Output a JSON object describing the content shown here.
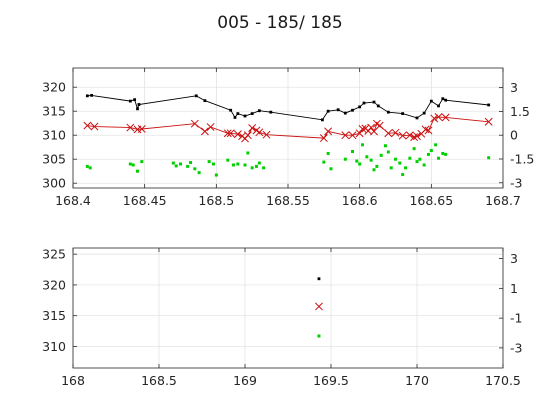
{
  "chart_data": {
    "title": "005 - 185/ 185",
    "panels": [
      {
        "type": "line",
        "xlim": [
          168.4,
          168.7
        ],
        "ylim": [
          299,
          324
        ],
        "y2lim": [
          -3.33,
          4.24
        ],
        "xticks": [
          168.4,
          168.45,
          168.5,
          168.55,
          168.6,
          168.65,
          168.7
        ],
        "xtick_labels": [
          "168.4",
          "168.45",
          "168.5",
          "168.55",
          "168.6",
          "168.65",
          "168.7"
        ],
        "yticks": [
          300,
          305,
          310,
          315,
          320
        ],
        "ytick_labels": [
          "300",
          "305",
          "310",
          "315",
          "320"
        ],
        "y2ticks": [
          -3,
          -1.5,
          0,
          1.5,
          3
        ],
        "y2tick_labels": [
          "-3",
          "-1.5",
          "0",
          "1.5",
          "3"
        ],
        "grid": true,
        "series": [
          {
            "style": "black-line-dots",
            "color": "#000000",
            "x": [
              168.41,
              168.413,
              168.44,
              168.443,
              168.445,
              168.446,
              168.486,
              168.492,
              168.51,
              168.513,
              168.515,
              168.52,
              168.525,
              168.53,
              168.538,
              168.574,
              168.578,
              168.585,
              168.59,
              168.595,
              168.6,
              168.603,
              168.61,
              168.613,
              168.62,
              168.63,
              168.64,
              168.645,
              168.65,
              168.655,
              168.658,
              168.66,
              168.69
            ],
            "y": [
              318.2,
              318.3,
              317.1,
              317.4,
              315.5,
              316.4,
              318.2,
              317.2,
              315.2,
              313.7,
              314.5,
              314.0,
              314.5,
              315.1,
              314.8,
              313.2,
              315.0,
              315.3,
              314.6,
              315.2,
              315.9,
              316.7,
              316.9,
              316.1,
              314.8,
              314.5,
              313.6,
              314.6,
              317.1,
              316.1,
              317.6,
              317.3,
              316.3
            ]
          },
          {
            "style": "red-line-x",
            "color": "#cc1010",
            "x": [
              168.41,
              168.415,
              168.44,
              168.445,
              168.448,
              168.485,
              168.492,
              168.496,
              168.508,
              168.51,
              168.515,
              168.518,
              168.52,
              168.522,
              168.525,
              168.528,
              168.53,
              168.535,
              168.575,
              168.578,
              168.59,
              168.595,
              168.6,
              168.602,
              168.604,
              168.606,
              168.608,
              168.61,
              168.612,
              168.614,
              168.62,
              168.625,
              168.63,
              168.635,
              168.638,
              168.64,
              168.643,
              168.646,
              168.648,
              168.652,
              168.655,
              168.66,
              168.69
            ],
            "y": [
              312.0,
              311.8,
              311.6,
              311.2,
              311.3,
              312.4,
              310.8,
              311.7,
              310.4,
              310.4,
              310.2,
              309.8,
              309.3,
              310.0,
              311.5,
              311.0,
              310.6,
              310.1,
              309.4,
              310.8,
              310.0,
              310.0,
              310.4,
              311.3,
              311.4,
              310.9,
              311.6,
              310.8,
              312.4,
              312.0,
              310.4,
              310.5,
              309.9,
              310.0,
              309.6,
              309.8,
              310.3,
              311.2,
              311.0,
              313.5,
              313.8,
              313.7,
              312.8
            ]
          },
          {
            "style": "green-dots",
            "color": "#00d000",
            "x": [
              168.41,
              168.412,
              168.44,
              168.442,
              168.445,
              168.448,
              168.47,
              168.472,
              168.475,
              168.48,
              168.482,
              168.485,
              168.488,
              168.495,
              168.498,
              168.5,
              168.508,
              168.512,
              168.515,
              168.52,
              168.522,
              168.525,
              168.528,
              168.53,
              168.533,
              168.575,
              168.578,
              168.58,
              168.59,
              168.595,
              168.598,
              168.6,
              168.602,
              168.605,
              168.608,
              168.61,
              168.612,
              168.615,
              168.618,
              168.62,
              168.622,
              168.625,
              168.628,
              168.63,
              168.632,
              168.635,
              168.638,
              168.64,
              168.642,
              168.645,
              168.648,
              168.65,
              168.653,
              168.655,
              168.658,
              168.66,
              168.69
            ],
            "y": [
              303.5,
              303.2,
              304.0,
              303.8,
              302.5,
              304.5,
              304.2,
              303.6,
              304.0,
              303.5,
              304.3,
              303.0,
              302.2,
              304.5,
              304.0,
              301.7,
              304.8,
              303.8,
              304.0,
              303.8,
              306.3,
              303.2,
              303.5,
              304.2,
              303.2,
              304.4,
              306.2,
              303.0,
              305.0,
              306.6,
              304.6,
              304.0,
              308.0,
              305.5,
              304.8,
              302.8,
              303.5,
              305.8,
              307.8,
              306.5,
              303.2,
              305.0,
              304.2,
              301.8,
              303.2,
              305.2,
              307.2,
              304.5,
              305.0,
              303.8,
              306.0,
              306.8,
              308.0,
              305.2,
              306.2,
              306.0,
              305.3
            ]
          }
        ]
      },
      {
        "type": "scatter",
        "xlim": [
          168,
          170.5
        ],
        "ylim": [
          306.5,
          326
        ],
        "y2lim": [
          -4.35,
          3.71
        ],
        "xticks": [
          168,
          168.5,
          169,
          169.5,
          170,
          170.5
        ],
        "xtick_labels": [
          "168",
          "168.5",
          "169",
          "169.5",
          "170",
          "170.5"
        ],
        "yticks": [
          310,
          315,
          320,
          325
        ],
        "ytick_labels": [
          "310",
          "315",
          "320",
          "325"
        ],
        "y2ticks": [
          -3,
          -1,
          1,
          3
        ],
        "y2tick_labels": [
          "-3",
          "-1",
          "1",
          "3"
        ],
        "grid": true,
        "series": [
          {
            "style": "black-line-dots",
            "color": "#000000",
            "x": [
              169.43
            ],
            "y": [
              321.0
            ]
          },
          {
            "style": "red-line-x",
            "color": "#cc1010",
            "x": [
              169.43
            ],
            "y": [
              316.5
            ]
          },
          {
            "style": "green-dots",
            "color": "#00d000",
            "x": [
              169.43
            ],
            "y": [
              311.7
            ]
          }
        ]
      }
    ]
  }
}
